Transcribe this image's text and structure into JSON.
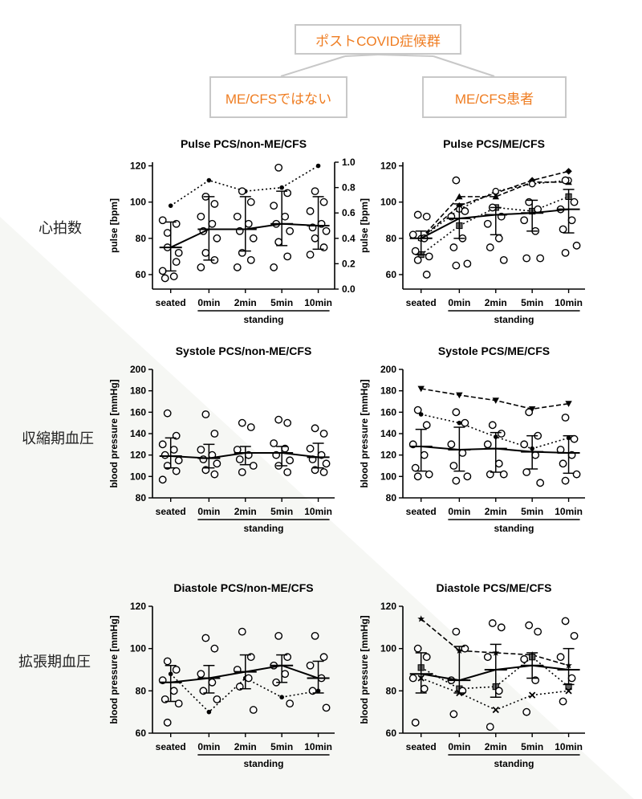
{
  "header": {
    "top_box": "ポストCOVID症候群",
    "left_box": "ME/CFSではない",
    "right_box": "ME/CFS患者"
  },
  "row_labels": {
    "pulse": "心拍数",
    "systole": "収縮期血圧",
    "diastole": "拡張期血圧"
  },
  "colors": {
    "accent": "#ef7d22",
    "box_border": "#c8c8c8",
    "ink": "#000000"
  },
  "chart_data": [
    {
      "id": "pulse_non",
      "type": "scatter",
      "title": "Pulse PCS/non-ME/CFS",
      "ylabel": "pulse [bpm]",
      "ylabel_right": "pulse [bpm]",
      "ylim": [
        52,
        122
      ],
      "yticks": [
        60,
        80,
        100,
        120
      ],
      "ylim_right": [
        0,
        1.0
      ],
      "yticks_right": [
        "0.0",
        "0.2",
        "0.4",
        "0.6",
        "0.8",
        "1.0"
      ],
      "categories": [
        "seated",
        "0min",
        "2min",
        "5min",
        "10min"
      ],
      "xlabel": "standing",
      "points": [
        [
          75,
          67,
          62,
          59,
          58,
          72,
          83,
          88,
          90
        ],
        [
          103,
          99,
          92,
          88,
          84,
          80,
          72,
          68,
          64
        ],
        [
          106,
          100,
          92,
          88,
          84,
          80,
          72,
          68,
          64
        ],
        [
          119,
          105,
          98,
          92,
          88,
          84,
          78,
          70,
          64
        ],
        [
          106,
          100,
          95,
          88,
          86,
          84,
          80,
          75,
          71
        ]
      ],
      "median_line": [
        75,
        85,
        85,
        88,
        87
      ],
      "error_bars": [
        [
          62,
          89
        ],
        [
          68,
          103
        ],
        [
          73,
          103
        ],
        [
          76,
          106
        ],
        [
          74,
          103
        ]
      ],
      "p_series": [
        {
          "marker": "dot",
          "dash": "2,3",
          "values": [
            98,
            112,
            106,
            108,
            120
          ]
        }
      ],
      "p_series_axis": "right"
    },
    {
      "id": "pulse_me",
      "type": "scatter",
      "title": "Pulse PCS/ME/CFS",
      "ylabel": "pulse [bpm]",
      "ylim": [
        52,
        122
      ],
      "yticks": [
        60,
        80,
        100,
        120
      ],
      "categories": [
        "seated",
        "0min",
        "2min",
        "5min",
        "10min"
      ],
      "xlabel": "standing",
      "points": [
        [
          93,
          92,
          82,
          80,
          73,
          70,
          68,
          60
        ],
        [
          112,
          95,
          92,
          80,
          75,
          66,
          65
        ],
        [
          97,
          92,
          88,
          80,
          75,
          68
        ],
        [
          100,
          96,
          90,
          84,
          69,
          69
        ],
        [
          112,
          100,
          96,
          90,
          85,
          76,
          72
        ]
      ],
      "median_line": [
        80,
        91,
        93,
        94,
        96
      ],
      "error_bars": [
        [
          71,
          84
        ],
        [
          80,
          99
        ],
        [
          82,
          97
        ],
        [
          84,
          101
        ],
        [
          83,
          107
        ]
      ],
      "p_series": [
        {
          "marker": "diamond",
          "dash": "6,3",
          "values": [
            80,
            98,
            105,
            112,
            117
          ]
        },
        {
          "marker": "triangle",
          "dash": "6,3",
          "values": [
            80,
            103,
            103,
            111,
            111
          ]
        },
        {
          "marker": "square",
          "dash": "2,3",
          "values": [
            71,
            87,
            97,
            95,
            103
          ]
        },
        {
          "marker": "circle-open",
          "dash": "2,3",
          "values": [
            80,
            96,
            106,
            110,
            112
          ]
        }
      ]
    },
    {
      "id": "systole_non",
      "type": "scatter",
      "title": "Systole PCS/non-ME/CFS",
      "ylabel": "blood pressure [mmHg]",
      "ylim": [
        80,
        200
      ],
      "yticks": [
        80,
        100,
        120,
        140,
        160,
        180,
        200
      ],
      "categories": [
        "seated",
        "0min",
        "2min",
        "5min",
        "10min"
      ],
      "xlabel": "standing",
      "points": [
        [
          159,
          138,
          130,
          125,
          120,
          115,
          110,
          105,
          97
        ],
        [
          158,
          140,
          125,
          120,
          116,
          112,
          106,
          102
        ],
        [
          150,
          146,
          125,
          120,
          116,
          110,
          104
        ],
        [
          153,
          150,
          131,
          126,
          120,
          115,
          110,
          104
        ],
        [
          145,
          140,
          126,
          120,
          116,
          112,
          106,
          104
        ]
      ],
      "median_line": [
        119,
        117,
        122,
        122,
        118
      ],
      "error_bars": [
        [
          108,
          136
        ],
        [
          108,
          130
        ],
        [
          111,
          128
        ],
        [
          110,
          128
        ],
        [
          108,
          131
        ]
      ],
      "p_series": []
    },
    {
      "id": "systole_me",
      "type": "scatter",
      "title": "Systole PCS/ME/CFS",
      "ylabel": "blood pressure [mmHg]",
      "ylim": [
        80,
        200
      ],
      "yticks": [
        80,
        100,
        120,
        140,
        160,
        180,
        200
      ],
      "categories": [
        "seated",
        "0min",
        "2min",
        "5min",
        "10min"
      ],
      "xlabel": "standing",
      "points": [
        [
          162,
          148,
          130,
          120,
          108,
          102,
          100
        ],
        [
          160,
          150,
          130,
          122,
          110,
          100,
          96
        ],
        [
          148,
          140,
          130,
          112,
          102,
          102
        ],
        [
          160,
          138,
          130,
          120,
          104,
          94
        ],
        [
          155,
          135,
          125,
          120,
          112,
          102,
          96
        ]
      ],
      "median_line": [
        128,
        125,
        126,
        123,
        122
      ],
      "error_bars": [
        [
          105,
          144
        ],
        [
          105,
          146
        ],
        [
          104,
          141
        ],
        [
          107,
          138
        ],
        [
          103,
          138
        ]
      ],
      "p_series": [
        {
          "marker": "triangle-down",
          "dash": "6,3",
          "values": [
            182,
            176,
            171,
            163,
            168
          ]
        },
        {
          "marker": "dot",
          "dash": "2,3",
          "values": [
            158,
            150,
            137,
            126,
            136
          ]
        }
      ]
    },
    {
      "id": "diastole_non",
      "type": "scatter",
      "title": "Diastole PCS/non-ME/CFS",
      "ylabel": "blood pressure [mmHg]",
      "ylim": [
        60,
        120
      ],
      "yticks": [
        60,
        80,
        100,
        120
      ],
      "categories": [
        "seated",
        "0min",
        "2min",
        "5min",
        "10min"
      ],
      "xlabel": "standing",
      "points": [
        [
          94,
          90,
          85,
          80,
          76,
          74,
          65
        ],
        [
          105,
          100,
          88,
          84,
          80,
          76
        ],
        [
          108,
          96,
          90,
          86,
          82,
          71
        ],
        [
          106,
          96,
          92,
          88,
          84,
          74
        ],
        [
          106,
          96,
          92,
          86,
          80,
          72
        ]
      ],
      "median_line": [
        84,
        86,
        89,
        92,
        86
      ],
      "error_bars": [
        [
          75,
          92
        ],
        [
          79,
          92
        ],
        [
          81,
          97
        ],
        [
          84,
          97
        ],
        [
          79,
          94
        ]
      ],
      "p_series": [
        {
          "marker": "dot",
          "dash": "2,3",
          "values": [
            88,
            70,
            86,
            77,
            80
          ]
        }
      ]
    },
    {
      "id": "diastole_me",
      "type": "scatter",
      "title": "Diastole PCS/ME/CFS",
      "ylabel": "blood pressure [mmHg]",
      "ylim": [
        60,
        120
      ],
      "yticks": [
        60,
        80,
        100,
        120
      ],
      "categories": [
        "seated",
        "0min",
        "2min",
        "5min",
        "10min"
      ],
      "xlabel": "standing",
      "points": [
        [
          100,
          96,
          86,
          81,
          65
        ],
        [
          108,
          100,
          85,
          80,
          69
        ],
        [
          112,
          110,
          96,
          80,
          63
        ],
        [
          111,
          108,
          95,
          85,
          70
        ],
        [
          113,
          106,
          96,
          86,
          75
        ]
      ],
      "median_line": [
        88,
        85,
        90,
        92,
        90
      ],
      "error_bars": [
        [
          79,
          98
        ],
        [
          79,
          101
        ],
        [
          77,
          102
        ],
        [
          86,
          98
        ],
        [
          83,
          100
        ]
      ],
      "p_series": [
        {
          "marker": "star",
          "dash": "6,3",
          "values": [
            114,
            99,
            98,
            97,
            92
          ]
        },
        {
          "marker": "square",
          "dash": "2,3",
          "values": [
            91,
            81,
            82,
            96,
            82
          ]
        },
        {
          "marker": "cross",
          "dash": "2,3",
          "values": [
            86,
            79,
            71,
            78,
            80
          ]
        }
      ]
    }
  ]
}
